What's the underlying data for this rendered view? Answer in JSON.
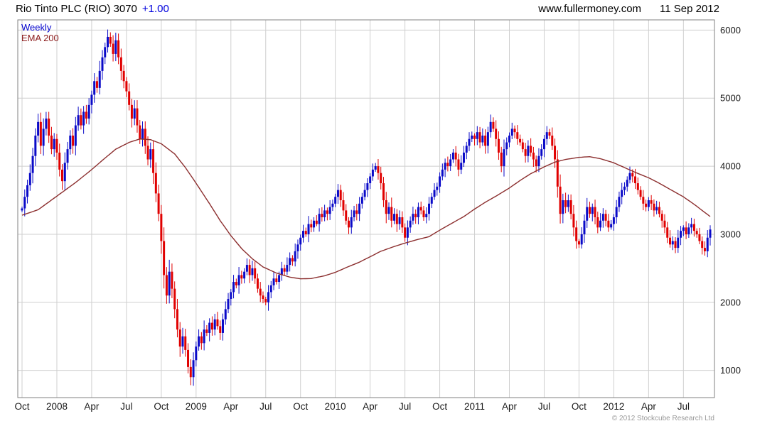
{
  "header": {
    "title": "Rio Tinto PLC (RIO) 3070",
    "change": "+1.00",
    "website": "www.fullermoney.com",
    "date": "11 Sep 2012"
  },
  "legend": {
    "weekly": "Weekly",
    "ema": "EMA 200"
  },
  "footer": {
    "copyright": "© 2012 Stockcube Research Ltd"
  },
  "colors": {
    "up": "#0a0ac8",
    "down": "#e00000",
    "ema": "#8c2f2f",
    "grid": "#cfcfcf",
    "border": "#808080",
    "change_text": "#0000dd",
    "legend_weekly": "#0000cc",
    "legend_ema": "#8b1a1a",
    "axis_text": "#1a1a1a"
  },
  "chart_data": {
    "type": "candlestick",
    "title": "Rio Tinto PLC (RIO)",
    "interval": "Weekly",
    "last_price": 3070,
    "change": 1.0,
    "legend": [
      "Weekly",
      "EMA 200"
    ],
    "grid": true,
    "legend_position": "top-left",
    "y_axis_side": "right",
    "ylim": [
      600,
      6150
    ],
    "y_ticks": [
      1000,
      2000,
      3000,
      4000,
      5000,
      6000
    ],
    "x_ticks": [
      {
        "label": "Oct",
        "week": 0
      },
      {
        "label": "2008",
        "week": 13
      },
      {
        "label": "Apr",
        "week": 26
      },
      {
        "label": "Jul",
        "week": 39
      },
      {
        "label": "Oct",
        "week": 52
      },
      {
        "label": "2009",
        "week": 65
      },
      {
        "label": "Apr",
        "week": 78
      },
      {
        "label": "Jul",
        "week": 91
      },
      {
        "label": "Oct",
        "week": 104
      },
      {
        "label": "2010",
        "week": 117
      },
      {
        "label": "Apr",
        "week": 130
      },
      {
        "label": "Jul",
        "week": 143
      },
      {
        "label": "Oct",
        "week": 156
      },
      {
        "label": "2011",
        "week": 169
      },
      {
        "label": "Apr",
        "week": 182
      },
      {
        "label": "Jul",
        "week": 195
      },
      {
        "label": "Oct",
        "week": 208
      },
      {
        "label": "2012",
        "week": 221
      },
      {
        "label": "Apr",
        "week": 234
      },
      {
        "label": "Jul",
        "week": 247
      }
    ],
    "first_open": 3350,
    "weekly_closes": [
      3380,
      3550,
      3720,
      3900,
      4150,
      4450,
      4650,
      4300,
      4550,
      4700,
      4450,
      4250,
      4400,
      4200,
      3950,
      3780,
      4050,
      4250,
      4450,
      4300,
      4600,
      4750,
      4600,
      4800,
      4700,
      4900,
      5050,
      5250,
      5150,
      5400,
      5600,
      5750,
      5900,
      5800,
      5650,
      5850,
      5600,
      5400,
      5250,
      5100,
      4900,
      4700,
      4850,
      4600,
      4400,
      4550,
      4300,
      4100,
      4250,
      3900,
      3600,
      3300,
      2900,
      2400,
      2100,
      2450,
      2200,
      1900,
      1600,
      1350,
      1500,
      1300,
      1050,
      900,
      1150,
      1350,
      1500,
      1400,
      1600,
      1550,
      1700,
      1600,
      1750,
      1650,
      1550,
      1750,
      1900,
      2050,
      2150,
      2300,
      2250,
      2400,
      2350,
      2450,
      2550,
      2400,
      2500,
      2350,
      2200,
      2100,
      2050,
      2000,
      2150,
      2250,
      2350,
      2300,
      2400,
      2500,
      2450,
      2550,
      2650,
      2600,
      2750,
      2850,
      2950,
      3050,
      3000,
      3150,
      3100,
      3200,
      3150,
      3300,
      3250,
      3350,
      3300,
      3400,
      3450,
      3550,
      3650,
      3500,
      3350,
      3200,
      3100,
      3250,
      3350,
      3300,
      3450,
      3550,
      3650,
      3750,
      3850,
      3950,
      4000,
      3900,
      3750,
      3500,
      3300,
      3400,
      3200,
      3300,
      3150,
      3250,
      3100,
      2950,
      3100,
      3200,
      3300,
      3250,
      3400,
      3350,
      3250,
      3300,
      3450,
      3550,
      3650,
      3700,
      3850,
      3950,
      4050,
      4000,
      4100,
      4200,
      4100,
      3950,
      4050,
      4200,
      4300,
      4400,
      4450,
      4400,
      4500,
      4350,
      4450,
      4300,
      4500,
      4650,
      4550,
      4400,
      4200,
      4000,
      4250,
      4350,
      4450,
      4550,
      4500,
      4400,
      4350,
      4250,
      4150,
      4300,
      4200,
      4100,
      4000,
      4150,
      4250,
      4400,
      4500,
      4450,
      4300,
      4100,
      3700,
      3300,
      3500,
      3400,
      3500,
      3300,
      3100,
      2900,
      2850,
      3000,
      3200,
      3400,
      3300,
      3400,
      3250,
      3100,
      3200,
      3300,
      3200,
      3100,
      3150,
      3250,
      3400,
      3550,
      3650,
      3700,
      3800,
      3900,
      3850,
      3750,
      3650,
      3550,
      3450,
      3400,
      3500,
      3450,
      3350,
      3400,
      3300,
      3200,
      3100,
      2950,
      2850,
      2900,
      2800,
      2950,
      3050,
      3100,
      3000,
      3100,
      3150,
      3050,
      3000,
      2900,
      2800,
      2750,
      2950,
      3070
    ],
    "ema_200_keypoints": [
      [
        0,
        3280
      ],
      [
        6,
        3360
      ],
      [
        13,
        3560
      ],
      [
        20,
        3760
      ],
      [
        26,
        3950
      ],
      [
        31,
        4120
      ],
      [
        35,
        4250
      ],
      [
        40,
        4350
      ],
      [
        44,
        4400
      ],
      [
        48,
        4390
      ],
      [
        52,
        4330
      ],
      [
        57,
        4180
      ],
      [
        61,
        3980
      ],
      [
        65,
        3750
      ],
      [
        70,
        3450
      ],
      [
        74,
        3200
      ],
      [
        78,
        2980
      ],
      [
        82,
        2790
      ],
      [
        86,
        2640
      ],
      [
        90,
        2520
      ],
      [
        95,
        2430
      ],
      [
        100,
        2370
      ],
      [
        104,
        2345
      ],
      [
        108,
        2350
      ],
      [
        113,
        2390
      ],
      [
        117,
        2440
      ],
      [
        121,
        2510
      ],
      [
        126,
        2590
      ],
      [
        130,
        2670
      ],
      [
        134,
        2750
      ],
      [
        139,
        2820
      ],
      [
        143,
        2870
      ],
      [
        147,
        2915
      ],
      [
        152,
        2965
      ],
      [
        156,
        3060
      ],
      [
        160,
        3150
      ],
      [
        165,
        3260
      ],
      [
        169,
        3370
      ],
      [
        173,
        3470
      ],
      [
        177,
        3560
      ],
      [
        182,
        3680
      ],
      [
        186,
        3790
      ],
      [
        190,
        3890
      ],
      [
        195,
        3990
      ],
      [
        199,
        4060
      ],
      [
        203,
        4100
      ],
      [
        208,
        4130
      ],
      [
        212,
        4140
      ],
      [
        216,
        4110
      ],
      [
        221,
        4050
      ],
      [
        225,
        3980
      ],
      [
        229,
        3910
      ],
      [
        234,
        3830
      ],
      [
        238,
        3750
      ],
      [
        242,
        3660
      ],
      [
        247,
        3550
      ],
      [
        251,
        3440
      ],
      [
        254,
        3350
      ],
      [
        257,
        3260
      ]
    ]
  }
}
